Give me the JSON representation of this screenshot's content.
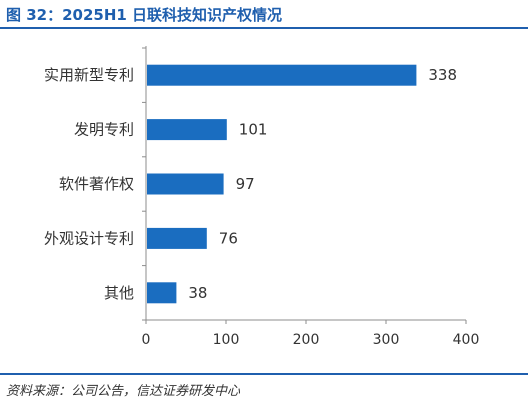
{
  "figure": {
    "title": "图 32：2025H1 日联科技知识产权情况",
    "source": "资料来源：公司公告，信达证券研发中心"
  },
  "colors": {
    "accent": "#1f5fae",
    "bar": "#1a6dc0",
    "axis": "#8c8c8c"
  },
  "chart_data": {
    "type": "bar",
    "orientation": "horizontal",
    "title": "",
    "xlabel": "",
    "ylabel": "",
    "categories": [
      "实用新型专利",
      "发明专利",
      "软件著作权",
      "外观设计专利",
      "其他"
    ],
    "values": [
      338,
      101,
      97,
      76,
      38
    ],
    "xlim": [
      0,
      400
    ],
    "xticks": [
      0,
      100,
      200,
      300,
      400
    ],
    "grid": false,
    "legend": "none",
    "data_labels": true
  }
}
